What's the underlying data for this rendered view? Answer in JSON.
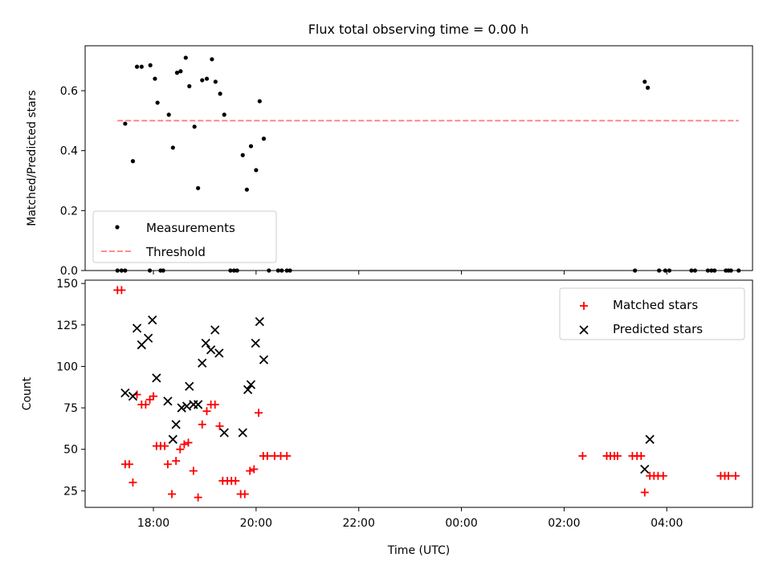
{
  "title": "Flux total observing time = 0.00 h",
  "colors": {
    "measurement": "#000000",
    "threshold": "#ff7f7f",
    "matched": "#ff0000",
    "predicted": "#000000"
  },
  "chart_data": [
    {
      "type": "scatter",
      "title": "Flux total observing time = 0.00 h",
      "xlabel": "",
      "ylabel": "Matched/Predicted stars",
      "xlim_hours": [
        16.67,
        29.67
      ],
      "ylim": [
        0,
        0.75
      ],
      "x_ticks": [
        18,
        20,
        22,
        24,
        26,
        28
      ],
      "y_ticks": [
        0.0,
        0.2,
        0.4,
        0.6
      ],
      "y_tick_labels": [
        "0.0",
        "0.2",
        "0.4",
        "0.6"
      ],
      "legend": {
        "placement": "lower-left",
        "entries": [
          "Measurements",
          "Threshold"
        ]
      },
      "threshold": {
        "name": "Threshold",
        "y": 0.5,
        "x_range": [
          17.3,
          29.4
        ]
      },
      "series": [
        {
          "name": "Measurements",
          "marker": "dot",
          "points": [
            [
              17.3,
              0
            ],
            [
              17.38,
              0
            ],
            [
              17.45,
              0
            ],
            [
              17.93,
              0
            ],
            [
              18.14,
              0
            ],
            [
              18.19,
              0
            ],
            [
              19.5,
              0
            ],
            [
              19.57,
              0
            ],
            [
              19.63,
              0
            ],
            [
              20.25,
              0
            ],
            [
              20.43,
              0
            ],
            [
              20.5,
              0
            ],
            [
              20.6,
              0
            ],
            [
              20.66,
              0
            ],
            [
              27.38,
              0
            ],
            [
              27.85,
              0
            ],
            [
              27.97,
              0
            ],
            [
              28.05,
              0
            ],
            [
              28.48,
              0
            ],
            [
              28.55,
              0
            ],
            [
              28.8,
              0
            ],
            [
              28.87,
              0
            ],
            [
              28.93,
              0
            ],
            [
              29.15,
              0
            ],
            [
              29.2,
              0
            ],
            [
              29.25,
              0
            ],
            [
              29.4,
              0
            ],
            [
              17.45,
              0.49
            ],
            [
              17.6,
              0.365
            ],
            [
              17.68,
              0.68
            ],
            [
              17.77,
              0.68
            ],
            [
              17.94,
              0.685
            ],
            [
              18.03,
              0.64
            ],
            [
              18.08,
              0.56
            ],
            [
              18.3,
              0.52
            ],
            [
              18.38,
              0.41
            ],
            [
              18.46,
              0.66
            ],
            [
              18.53,
              0.665
            ],
            [
              18.63,
              0.71
            ],
            [
              18.7,
              0.615
            ],
            [
              18.8,
              0.48
            ],
            [
              18.87,
              0.275
            ],
            [
              18.95,
              0.635
            ],
            [
              19.04,
              0.64
            ],
            [
              19.14,
              0.705
            ],
            [
              19.21,
              0.63
            ],
            [
              19.3,
              0.59
            ],
            [
              19.38,
              0.52
            ],
            [
              19.74,
              0.385
            ],
            [
              19.82,
              0.27
            ],
            [
              19.9,
              0.415
            ],
            [
              20.0,
              0.335
            ],
            [
              20.07,
              0.565
            ],
            [
              20.15,
              0.44
            ],
            [
              27.57,
              0.63
            ],
            [
              27.63,
              0.61
            ]
          ]
        }
      ]
    },
    {
      "type": "scatter",
      "xlabel": "Time (UTC)",
      "ylabel": "Count",
      "xlim_hours": [
        16.67,
        29.67
      ],
      "ylim": [
        15,
        152
      ],
      "x_ticks": [
        18,
        20,
        22,
        24,
        26,
        28
      ],
      "x_tick_labels": [
        "18:00",
        "20:00",
        "22:00",
        "00:00",
        "02:00",
        "04:00"
      ],
      "y_ticks": [
        25,
        50,
        75,
        100,
        125,
        150
      ],
      "legend": {
        "placement": "top-right",
        "entries": [
          "Matched stars",
          "Predicted stars"
        ]
      },
      "series": [
        {
          "name": "Matched stars",
          "marker": "plus",
          "points": [
            [
              17.3,
              146
            ],
            [
              17.38,
              146
            ],
            [
              17.45,
              41
            ],
            [
              17.53,
              41
            ],
            [
              17.6,
              30
            ],
            [
              17.68,
              83
            ],
            [
              17.77,
              77
            ],
            [
              17.85,
              77
            ],
            [
              17.93,
              80
            ],
            [
              18.0,
              82
            ],
            [
              18.06,
              52
            ],
            [
              18.14,
              52
            ],
            [
              18.22,
              52
            ],
            [
              18.28,
              41
            ],
            [
              18.36,
              23
            ],
            [
              18.44,
              43
            ],
            [
              18.52,
              50
            ],
            [
              18.6,
              53
            ],
            [
              18.68,
              54
            ],
            [
              18.78,
              37
            ],
            [
              18.87,
              21
            ],
            [
              18.95,
              65
            ],
            [
              19.04,
              73
            ],
            [
              19.12,
              77
            ],
            [
              19.2,
              77
            ],
            [
              19.29,
              64
            ],
            [
              19.35,
              31
            ],
            [
              19.44,
              31
            ],
            [
              19.52,
              31
            ],
            [
              19.6,
              31
            ],
            [
              19.7,
              23
            ],
            [
              19.78,
              23
            ],
            [
              19.88,
              37
            ],
            [
              19.96,
              38
            ],
            [
              20.05,
              72
            ],
            [
              20.14,
              46
            ],
            [
              20.22,
              46
            ],
            [
              20.36,
              46
            ],
            [
              20.48,
              46
            ],
            [
              20.6,
              46
            ],
            [
              26.36,
              46
            ],
            [
              26.83,
              46
            ],
            [
              26.9,
              46
            ],
            [
              26.98,
              46
            ],
            [
              27.04,
              46
            ],
            [
              27.33,
              46
            ],
            [
              27.42,
              46
            ],
            [
              27.5,
              46
            ],
            [
              27.57,
              24
            ],
            [
              27.67,
              34
            ],
            [
              27.75,
              34
            ],
            [
              27.83,
              34
            ],
            [
              27.93,
              34
            ],
            [
              29.05,
              34
            ],
            [
              29.13,
              34
            ],
            [
              29.2,
              34
            ],
            [
              29.34,
              34
            ]
          ]
        },
        {
          "name": "Predicted stars",
          "marker": "x",
          "points": [
            [
              17.45,
              84
            ],
            [
              17.6,
              82
            ],
            [
              17.68,
              123
            ],
            [
              17.77,
              113
            ],
            [
              17.9,
              117
            ],
            [
              17.98,
              128
            ],
            [
              18.06,
              93
            ],
            [
              18.28,
              79
            ],
            [
              18.38,
              56
            ],
            [
              18.44,
              65
            ],
            [
              18.55,
              75
            ],
            [
              18.65,
              76
            ],
            [
              18.7,
              88
            ],
            [
              18.78,
              77
            ],
            [
              18.87,
              77
            ],
            [
              18.95,
              102
            ],
            [
              19.02,
              114
            ],
            [
              19.12,
              110
            ],
            [
              19.2,
              122
            ],
            [
              19.28,
              108
            ],
            [
              19.38,
              60
            ],
            [
              19.74,
              60
            ],
            [
              19.84,
              86
            ],
            [
              19.9,
              89
            ],
            [
              19.99,
              114
            ],
            [
              20.07,
              127
            ],
            [
              20.15,
              104
            ],
            [
              27.57,
              38
            ],
            [
              27.67,
              56
            ]
          ]
        }
      ]
    }
  ]
}
